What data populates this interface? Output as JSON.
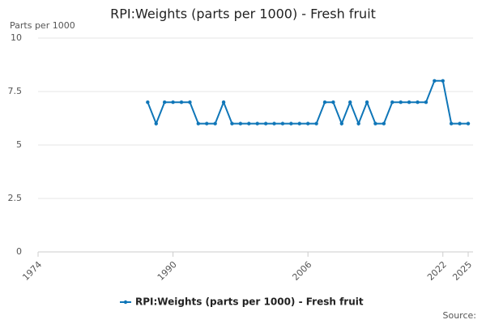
{
  "chart_data": {
    "type": "line",
    "title": "RPI:Weights (parts per 1000) - Fresh fruit",
    "y_label": "Parts per 1000",
    "source": "Source:",
    "x": [
      1987,
      1988,
      1989,
      1990,
      1991,
      1992,
      1993,
      1994,
      1995,
      1996,
      1997,
      1998,
      1999,
      2000,
      2001,
      2002,
      2003,
      2004,
      2005,
      2006,
      2007,
      2008,
      2009,
      2010,
      2011,
      2012,
      2013,
      2014,
      2015,
      2016,
      2017,
      2018,
      2019,
      2020,
      2021,
      2022,
      2023,
      2024,
      2025
    ],
    "series": [
      {
        "name": "RPI:Weights (parts per 1000) - Fresh fruit",
        "color": "#0f76b8",
        "values": [
          7,
          6,
          7,
          7,
          7,
          7,
          6,
          6,
          6,
          7,
          6,
          6,
          6,
          6,
          6,
          6,
          6,
          6,
          6,
          6,
          6,
          7,
          7,
          6,
          7,
          6,
          7,
          6,
          6,
          7,
          7,
          7,
          7,
          7,
          8,
          8,
          6,
          6,
          6
        ]
      }
    ],
    "xlim": [
      1974,
      2025
    ],
    "xticks": [
      1974,
      1990,
      2006,
      2022,
      2025
    ],
    "ylim": [
      0,
      10
    ],
    "yticks": [
      0,
      2.5,
      5,
      7.5,
      10
    ],
    "grid": true
  }
}
